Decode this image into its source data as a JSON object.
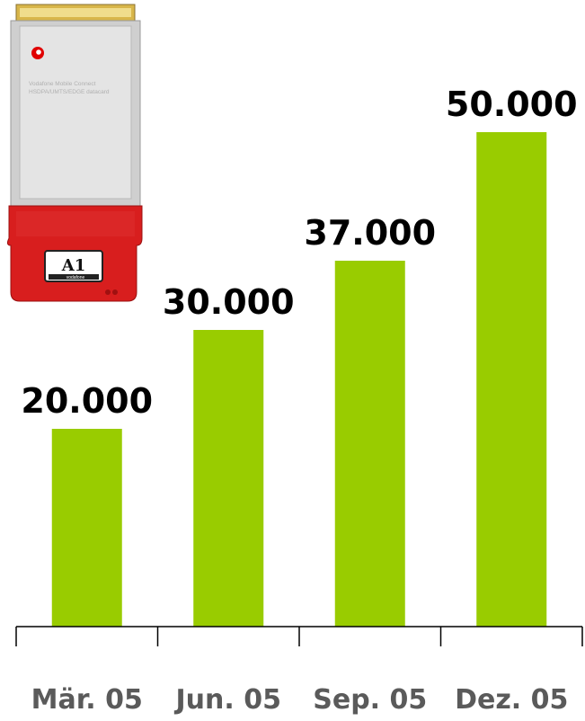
{
  "chart_data": {
    "type": "bar",
    "categories": [
      "Mär. 05",
      "Jun. 05",
      "Sep. 05",
      "Dez. 05"
    ],
    "values": [
      20000,
      30000,
      37000,
      50000
    ],
    "value_labels": [
      "20.000",
      "30.000",
      "37.000",
      "50.000"
    ],
    "title": "",
    "xlabel": "",
    "ylabel": "",
    "ylim": [
      0,
      50000
    ],
    "grid": false,
    "bar_color": "#99cc00",
    "label_color": "#000000",
    "category_color": "#5a5a5a"
  },
  "product_image": {
    "icon": "vodafone-umts-datacard",
    "body_color": "#d81e1e",
    "text_line1": "Vodafone Mobile Connect",
    "text_line2": "HSDPA/UMTS/EDGE datacard",
    "badge": "A1",
    "brand": "vodafone"
  }
}
